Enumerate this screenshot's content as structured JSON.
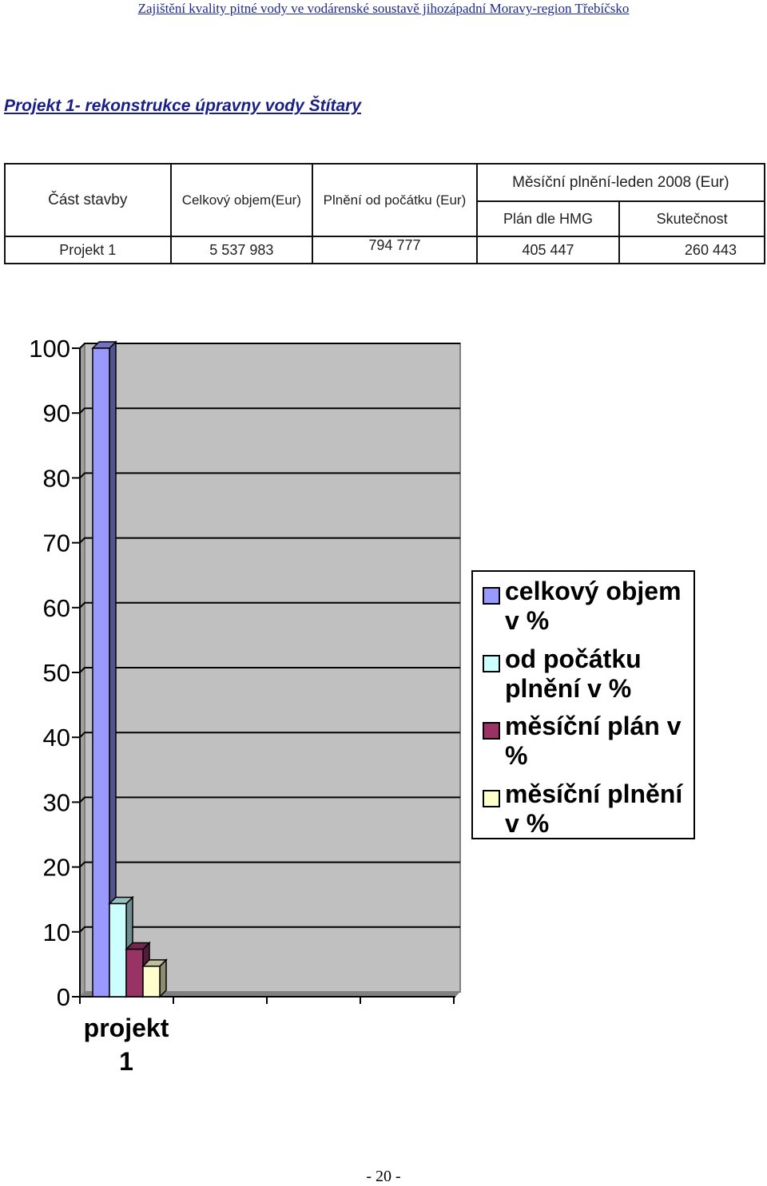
{
  "header": {
    "text": "Zajištění kvality pitné vody ve vodárenské soustavě jihozápadní Moravy-region Třebíčsko"
  },
  "title": "Projekt 1- rekonstrukce úpravny vody Štítary",
  "table": {
    "col_part": "Část stavby",
    "col_total": "Celkový objem(Eur)",
    "col_from_start": "Plnění od počátku (Eur)",
    "col_monthly": "Měsíční plnění-leden 2008 (Eur)",
    "col_plan": "Plán dle HMG",
    "col_actual": "Skutečnost",
    "row": {
      "part": "Projekt 1",
      "total": "5 537 983",
      "from_start": "794 777",
      "plan": "405 447",
      "actual": "260 443"
    }
  },
  "chart_data": {
    "type": "bar",
    "categories": [
      "projekt 1"
    ],
    "series": [
      {
        "name": "celkový objem v %",
        "values": [
          100
        ],
        "color": "#9999ff"
      },
      {
        "name": "od počátku plnění v %",
        "values": [
          14.35
        ],
        "color": "#ccffff"
      },
      {
        "name": "měsíční plán v %",
        "values": [
          7.32
        ],
        "color": "#993366"
      },
      {
        "name": "měsíční plnění v %",
        "values": [
          4.7
        ],
        "color": "#ffffcc"
      }
    ],
    "ylim": [
      0,
      100
    ],
    "yticks": [
      "0",
      "10",
      "20",
      "30",
      "40",
      "50",
      "60",
      "70",
      "80",
      "90",
      "100"
    ],
    "grid": true,
    "legend": "right",
    "plot_background": "#c0c0c0"
  },
  "footer": {
    "page": "- 20 -"
  }
}
